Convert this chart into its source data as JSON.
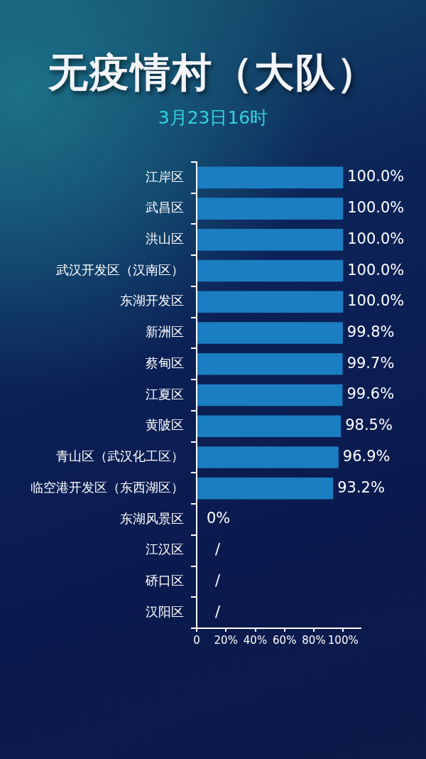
{
  "chart_data": {
    "type": "bar",
    "orientation": "horizontal",
    "title": "无疫情村（大队）",
    "subtitle": "3月23日16时",
    "categories": [
      "江岸区",
      "武昌区",
      "洪山区",
      "武汉开发区（汉南区）",
      "东湖开发区",
      "新洲区",
      "蔡甸区",
      "江夏区",
      "黄陂区",
      "青山区（武汉化工区）",
      "临空港开发区（东西湖区）",
      "东湖风景区",
      "江汉区",
      "硚口区",
      "汉阳区"
    ],
    "values": [
      100,
      100,
      100,
      100,
      100,
      99.8,
      99.7,
      99.6,
      98.5,
      96.9,
      93.2,
      0,
      null,
      null,
      null
    ],
    "value_labels": [
      "100.0%",
      "100.0%",
      "100.0%",
      "100.0%",
      "100.0%",
      "99.8%",
      "99.7%",
      "99.6%",
      "98.5%",
      "96.9%",
      "93.2%",
      "0%",
      "/",
      "/",
      "/"
    ],
    "color": "#1b7dc2",
    "xlim": [
      0,
      112
    ],
    "xticks": [
      0,
      {
        "value": 20,
        "label": "20%"
      },
      {
        "value": 40,
        "label": "40%"
      },
      {
        "value": 60,
        "label": "60%"
      },
      {
        "value": 80,
        "label": "80%"
      },
      {
        "value": 100,
        "label": "100%"
      }
    ]
  }
}
